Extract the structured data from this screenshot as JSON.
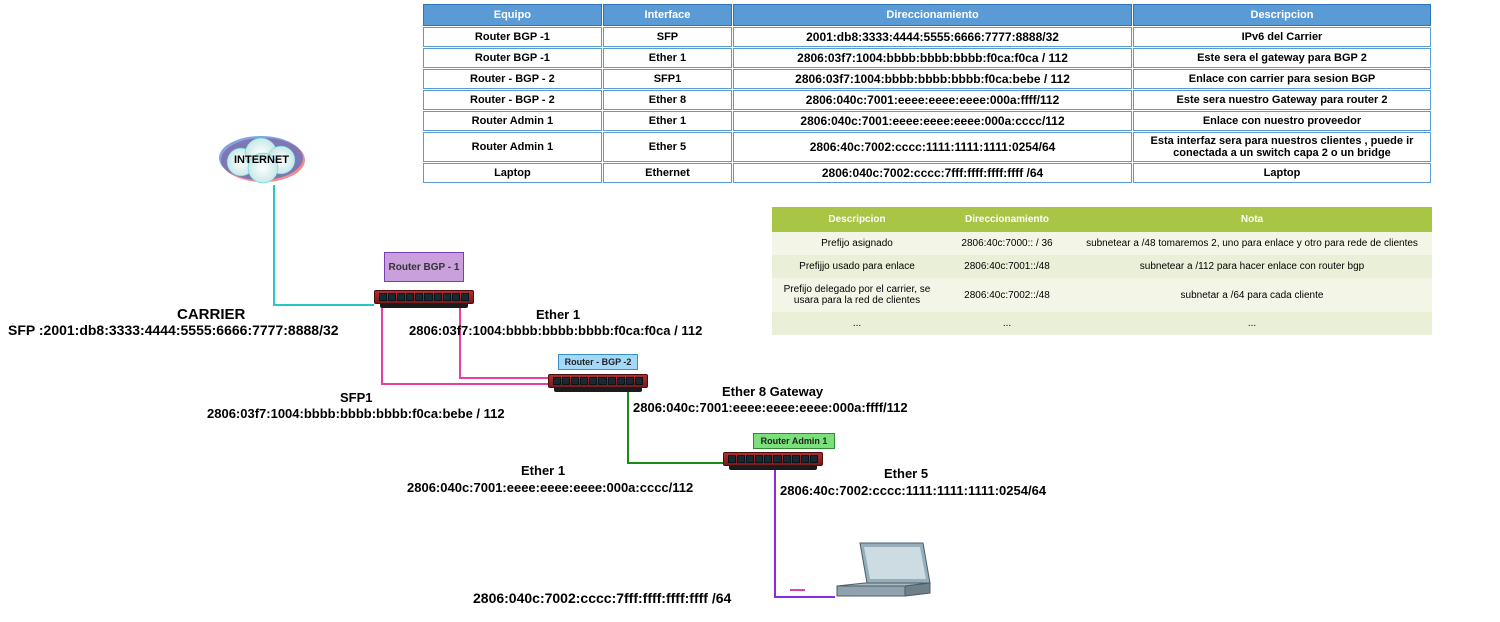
{
  "blueTable": {
    "headers": [
      "Equipo",
      "Interface",
      "Direccionamiento",
      "Descripcion"
    ],
    "header_bg": "#5b9bd5",
    "header_fg": "#ffffff",
    "cell_border": "#5b9bd5",
    "rows": [
      {
        "equipo": "Router BGP -1",
        "iface": "SFP",
        "addr": "2001:db8:3333:4444:5555:6666:7777:8888/32",
        "desc": "IPv6 del Carrier"
      },
      {
        "equipo": "Router BGP -1",
        "iface": "Ether 1",
        "addr": "2806:03f7:1004:bbbb:bbbb:bbbb:f0ca:f0ca / 112",
        "desc": "Este sera el gateway para BGP 2"
      },
      {
        "equipo": "Router - BGP - 2",
        "iface": "SFP1",
        "addr": "2806:03f7:1004:bbbb:bbbb:bbbb:f0ca:bebe / 112",
        "desc": "Enlace con carrier para sesion BGP"
      },
      {
        "equipo": "Router - BGP - 2",
        "iface": "Ether 8",
        "addr": "2806:040c:7001:eeee:eeee:eeee:000a:ffff/112",
        "desc": "Este sera nuestro Gateway para router 2"
      },
      {
        "equipo": "Router Admin 1",
        "iface": "Ether 1",
        "addr": "2806:040c:7001:eeee:eeee:eeee:000a:cccc/112",
        "desc": "Enlace con nuestro proveedor"
      },
      {
        "equipo": "Router Admin 1",
        "iface": "Ether 5",
        "addr": "2806:40c:7002:cccc:1111:1111:1111:0254/64",
        "desc": "Esta interfaz sera para nuestros clientes , puede ir conectada a un switch capa 2 o un bridge"
      },
      {
        "equipo": "Laptop",
        "iface": "Ethernet",
        "addr": "2806:040c:7002:cccc:7fff:ffff:ffff:ffff /64",
        "desc": "Laptop"
      }
    ]
  },
  "greenTable": {
    "headers": [
      "Descripcion",
      "Direccionamiento",
      "Nota"
    ],
    "header_bg": "#a8c545",
    "header_fg": "#ffffff",
    "row_odd_bg": "#f3f6e6",
    "row_even_bg": "#eaf0d8",
    "rows": [
      {
        "desc": "Prefijo asignado",
        "addr": "2806:40c:7000:: / 36",
        "nota": "subnetear a /48  tomaremos 2, uno para enlace y otro para rede de clientes"
      },
      {
        "desc": "Prefijjo usado para enlace",
        "addr": "2806:40c:7001::/48",
        "nota": "subnetear a /112 para hacer enlace con router bgp"
      },
      {
        "desc": "Prefijo delegado por el carrier, se usara para la red de clientes",
        "addr": "2806:40c:7002::/48",
        "nota": "subnetar a /64 para cada cliente"
      },
      {
        "desc": "...",
        "addr": "...",
        "nota": "..."
      }
    ]
  },
  "diagram": {
    "internet_label": "INTERNET",
    "carrier_title": "CARRIER",
    "carrier_addr": "SFP :2001:db8:3333:4444:5555:6666:7777:8888/32",
    "rb1": "Router BGP - 1",
    "rb2": "Router - BGP -2",
    "ra1": "Router Admin 1",
    "eth1a_t": "Ether 1",
    "eth1a_a": "2806:03f7:1004:bbbb:bbbb:bbbb:f0ca:f0ca / 112",
    "sfp1_t": "SFP1",
    "sfp1_a": "2806:03f7:1004:bbbb:bbbb:bbbb:f0ca:bebe / 112",
    "eth8_t": "Ether 8 Gateway",
    "eth8_a": "2806:040c:7001:eeee:eeee:eeee:000a:ffff/112",
    "eth1b_t": "Ether 1",
    "eth1b_a": "2806:040c:7001:eeee:eeee:eeee:000a:cccc/112",
    "eth5_t": "Ether 5",
    "eth5_a": "2806:40c:7002:cccc:1111:1111:1111:0254/64",
    "laptop_a": "2806:040c:7002:cccc:7fff:ffff:ffff:ffff /64",
    "colors": {
      "cloud_aqua": "#3cd6d6",
      "cloud_blue": "#3366cc",
      "cloud_red": "#e13131",
      "link_aqua": "#26c6c6",
      "link_pink": "#e83fa5",
      "link_green": "#1a8a1a",
      "link_purple": "#8a2be2",
      "router_body": "#b02e2e",
      "router_port": "#1a2833",
      "rb1_bg": "#c9a0dc",
      "rb2_bg": "#a3d9f7",
      "ra1_bg": "#7be07b"
    }
  }
}
